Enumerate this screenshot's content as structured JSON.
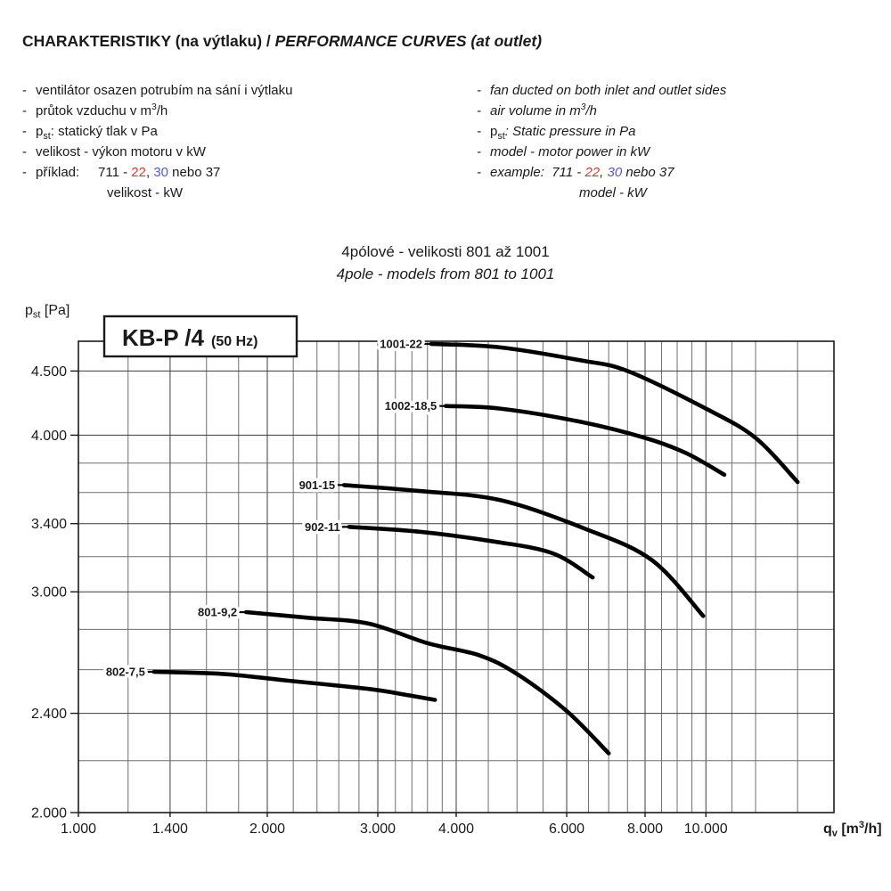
{
  "header": {
    "title": [
      {
        "t": "CHARAKTERISTIKY (na výtlaku) / "
      },
      {
        "t": "PERFORMANCE CURVES (at outlet)",
        "style": "italic"
      }
    ],
    "left_items": [
      {
        "segments": [
          {
            "t": "ventilátor osazen potrubím na sání i výtlaku"
          }
        ]
      },
      {
        "segments": [
          {
            "t": "průtok vzduchu v m"
          },
          {
            "t": "3",
            "style": "sup"
          },
          {
            "t": "/h"
          }
        ]
      },
      {
        "segments": [
          {
            "t": "p"
          },
          {
            "t": "st",
            "style": "sub"
          },
          {
            "t": ": statický tlak v Pa"
          }
        ]
      },
      {
        "segments": [
          {
            "t": "velikost - výkon motoru v kW"
          }
        ]
      },
      {
        "segments": [
          {
            "t": "příklad:"
          },
          {
            "t": "     711 - "
          },
          {
            "t": "22",
            "style": "red"
          },
          {
            "t": ", "
          },
          {
            "t": "30",
            "style": "blue"
          },
          {
            "t": " nebo 37"
          }
        ]
      },
      {
        "cont": true,
        "segments": [
          {
            "t": "velikost - kW"
          }
        ]
      }
    ],
    "right_items": [
      {
        "segments": [
          {
            "t": "fan ducted on both inlet and outlet sides"
          }
        ]
      },
      {
        "segments": [
          {
            "t": "air volume in m"
          },
          {
            "t": "3",
            "style": "sup"
          },
          {
            "t": "/h"
          }
        ]
      },
      {
        "segments": [
          {
            "t": "p",
            "style": "upright"
          },
          {
            "t": "st",
            "style": "subupright"
          },
          {
            "t": ": Static pressure in Pa"
          }
        ]
      },
      {
        "segments": [
          {
            "t": "model - motor power in kW"
          }
        ]
      },
      {
        "segments": [
          {
            "t": "example:"
          },
          {
            "t": "  711 - "
          },
          {
            "t": "22",
            "style": "red"
          },
          {
            "t": ", "
          },
          {
            "t": "30",
            "style": "blue"
          },
          {
            "t": " nebo 37"
          }
        ]
      },
      {
        "cont": true,
        "segments": [
          {
            "t": "model - kW"
          }
        ]
      }
    ]
  },
  "subtitle": {
    "cz": "4pólové - velikosti 801 až 1001",
    "en": "4pole - models from 801 to 1001"
  },
  "colors": {
    "red": "#e5352b",
    "blue": "#5358cd",
    "curve": "#000000",
    "grid_minor": "#6e6e6e",
    "grid_major": "#3c3c3c",
    "frame": "#1a1a1a",
    "text": "#1a1a1a"
  },
  "chart_data": {
    "type": "line",
    "badge": "KB-P /4",
    "badge_hz": "(50 Hz)",
    "x_scale": "log",
    "y_scale": "log",
    "xlim": [
      1000,
      16000
    ],
    "ylim": [
      2000,
      4753
    ],
    "ylabel_segments": [
      {
        "t": "p"
      },
      {
        "t": "st",
        "style": "sub"
      },
      {
        "t": " [Pa]"
      }
    ],
    "xlabel_segments": [
      {
        "t": "q"
      },
      {
        "t": "v",
        "style": "sub"
      },
      {
        "t": " [m"
      },
      {
        "t": "3",
        "style": "sup"
      },
      {
        "t": "/h]"
      }
    ],
    "x_gridlines": [
      1000,
      1200,
      1400,
      1600,
      1800,
      2000,
      2200,
      2400,
      2600,
      2800,
      3000,
      3200,
      3400,
      3600,
      3800,
      4000,
      4500,
      5000,
      5500,
      6000,
      6500,
      7000,
      7500,
      8000,
      8500,
      9000,
      9500,
      10000,
      11000,
      12000,
      14000,
      16000
    ],
    "x_major_ticks": [
      1000,
      1400,
      2000,
      3000,
      4000,
      6000,
      8000,
      10000
    ],
    "x_tick_labels": [
      "1.000",
      "1.400",
      "2.000",
      "3.000",
      "4.000",
      "6.000",
      "8.000",
      "10.000"
    ],
    "y_gridlines": [
      2000,
      2200,
      2400,
      2600,
      2800,
      3000,
      3200,
      3400,
      3600,
      3800,
      4000,
      4500
    ],
    "y_major_ticks": [
      2000,
      2400,
      3000,
      3400,
      4000,
      4500
    ],
    "y_tick_labels": [
      "2.000",
      "2.400",
      "3.000",
      "3.400",
      "4.000",
      "4.500"
    ],
    "series": [
      {
        "name": "1001-22",
        "points": [
          [
            3650,
            4730
          ],
          [
            4700,
            4700
          ],
          [
            6300,
            4590
          ],
          [
            7500,
            4500
          ],
          [
            10000,
            4200
          ],
          [
            12000,
            3980
          ],
          [
            14000,
            3670
          ]
        ]
      },
      {
        "name": "1002-18,5",
        "points": [
          [
            3850,
            4220
          ],
          [
            4700,
            4200
          ],
          [
            6300,
            4100
          ],
          [
            8000,
            3980
          ],
          [
            9300,
            3870
          ],
          [
            10700,
            3720
          ]
        ]
      },
      {
        "name": "901-15",
        "points": [
          [
            2650,
            3650
          ],
          [
            3500,
            3610
          ],
          [
            4700,
            3550
          ],
          [
            6400,
            3370
          ],
          [
            8200,
            3180
          ],
          [
            9900,
            2870
          ]
        ]
      },
      {
        "name": "902-11",
        "points": [
          [
            2700,
            3380
          ],
          [
            3500,
            3350
          ],
          [
            4600,
            3290
          ],
          [
            5700,
            3220
          ],
          [
            6600,
            3080
          ]
        ]
      },
      {
        "name": "801-9,2",
        "points": [
          [
            1850,
            2890
          ],
          [
            2330,
            2860
          ],
          [
            2900,
            2830
          ],
          [
            3600,
            2730
          ],
          [
            4350,
            2670
          ],
          [
            5000,
            2580
          ],
          [
            6000,
            2410
          ],
          [
            7000,
            2230
          ]
        ]
      },
      {
        "name": "802-7,5",
        "points": [
          [
            1320,
            2590
          ],
          [
            1700,
            2580
          ],
          [
            2130,
            2550
          ],
          [
            2900,
            2510
          ],
          [
            3370,
            2480
          ],
          [
            3700,
            2460
          ]
        ]
      }
    ]
  }
}
